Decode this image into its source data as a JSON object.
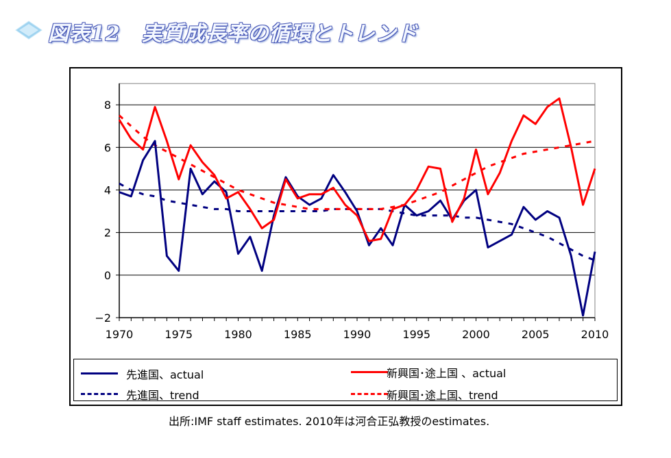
{
  "page": {
    "title": "図表12　実質成長率の循環とトレンド",
    "footnote": "出所:IMF staff estimates. 2010年は河合正弘教授のestimates."
  },
  "chart_data": {
    "type": "line",
    "x": [
      1970,
      1971,
      1972,
      1973,
      1974,
      1975,
      1976,
      1977,
      1978,
      1979,
      1980,
      1981,
      1982,
      1983,
      1984,
      1985,
      1986,
      1987,
      1988,
      1989,
      1990,
      1991,
      1992,
      1993,
      1994,
      1995,
      1996,
      1997,
      1998,
      1999,
      2000,
      2001,
      2002,
      2003,
      2004,
      2005,
      2006,
      2007,
      2008,
      2009,
      2010
    ],
    "xticks": [
      1970,
      1975,
      1980,
      1985,
      1990,
      1995,
      2000,
      2005,
      2010
    ],
    "yticks": [
      -2,
      0,
      2,
      4,
      6,
      8
    ],
    "xlim": [
      1970,
      2010
    ],
    "ylim": [
      -2,
      9
    ],
    "grid": "horizontal",
    "legend_position": "bottom",
    "series": [
      {
        "name": "先進国、actual",
        "color": "#000080",
        "style": "solid",
        "values": [
          3.9,
          3.7,
          5.4,
          6.3,
          0.9,
          0.2,
          5.0,
          3.8,
          4.4,
          3.9,
          1.0,
          1.8,
          0.2,
          2.8,
          4.6,
          3.7,
          3.3,
          3.6,
          4.7,
          3.9,
          3.0,
          1.4,
          2.2,
          1.4,
          3.3,
          2.8,
          3.0,
          3.5,
          2.6,
          3.5,
          4.0,
          1.3,
          1.6,
          1.9,
          3.2,
          2.6,
          3.0,
          2.7,
          0.9,
          -1.9,
          1.1
        ]
      },
      {
        "name": "先進国、trend",
        "color": "#000080",
        "style": "dashed",
        "values": [
          4.3,
          4.0,
          3.8,
          3.7,
          3.5,
          3.4,
          3.3,
          3.2,
          3.1,
          3.1,
          3.0,
          3.0,
          3.0,
          3.0,
          3.0,
          3.0,
          3.0,
          3.0,
          3.1,
          3.1,
          3.1,
          3.1,
          3.1,
          3.0,
          2.9,
          2.8,
          2.8,
          2.8,
          2.8,
          2.7,
          2.7,
          2.6,
          2.5,
          2.4,
          2.2,
          2.0,
          1.8,
          1.5,
          1.2,
          0.9,
          0.7
        ]
      },
      {
        "name": "新興国･途上国 、actual",
        "color": "#ff0000",
        "style": "solid",
        "values": [
          7.3,
          6.4,
          5.9,
          7.9,
          6.3,
          4.5,
          6.1,
          5.3,
          4.7,
          3.6,
          3.9,
          3.1,
          2.2,
          2.6,
          4.5,
          3.6,
          3.8,
          3.8,
          4.1,
          3.3,
          2.8,
          1.6,
          1.7,
          3.1,
          3.3,
          4.0,
          5.1,
          5.0,
          2.5,
          3.6,
          5.9,
          3.8,
          4.8,
          6.3,
          7.5,
          7.1,
          7.9,
          8.3,
          6.0,
          3.3,
          5.0
        ]
      },
      {
        "name": "新興国･途上国、trend",
        "color": "#ff0000",
        "style": "dashed",
        "values": [
          7.5,
          7.0,
          6.5,
          6.1,
          5.8,
          5.5,
          5.2,
          4.9,
          4.6,
          4.3,
          4.0,
          3.8,
          3.6,
          3.4,
          3.3,
          3.2,
          3.1,
          3.1,
          3.1,
          3.1,
          3.1,
          3.1,
          3.1,
          3.2,
          3.3,
          3.5,
          3.7,
          3.9,
          4.2,
          4.5,
          4.8,
          5.1,
          5.3,
          5.5,
          5.7,
          5.8,
          5.9,
          6.0,
          6.1,
          6.2,
          6.3
        ]
      }
    ]
  }
}
